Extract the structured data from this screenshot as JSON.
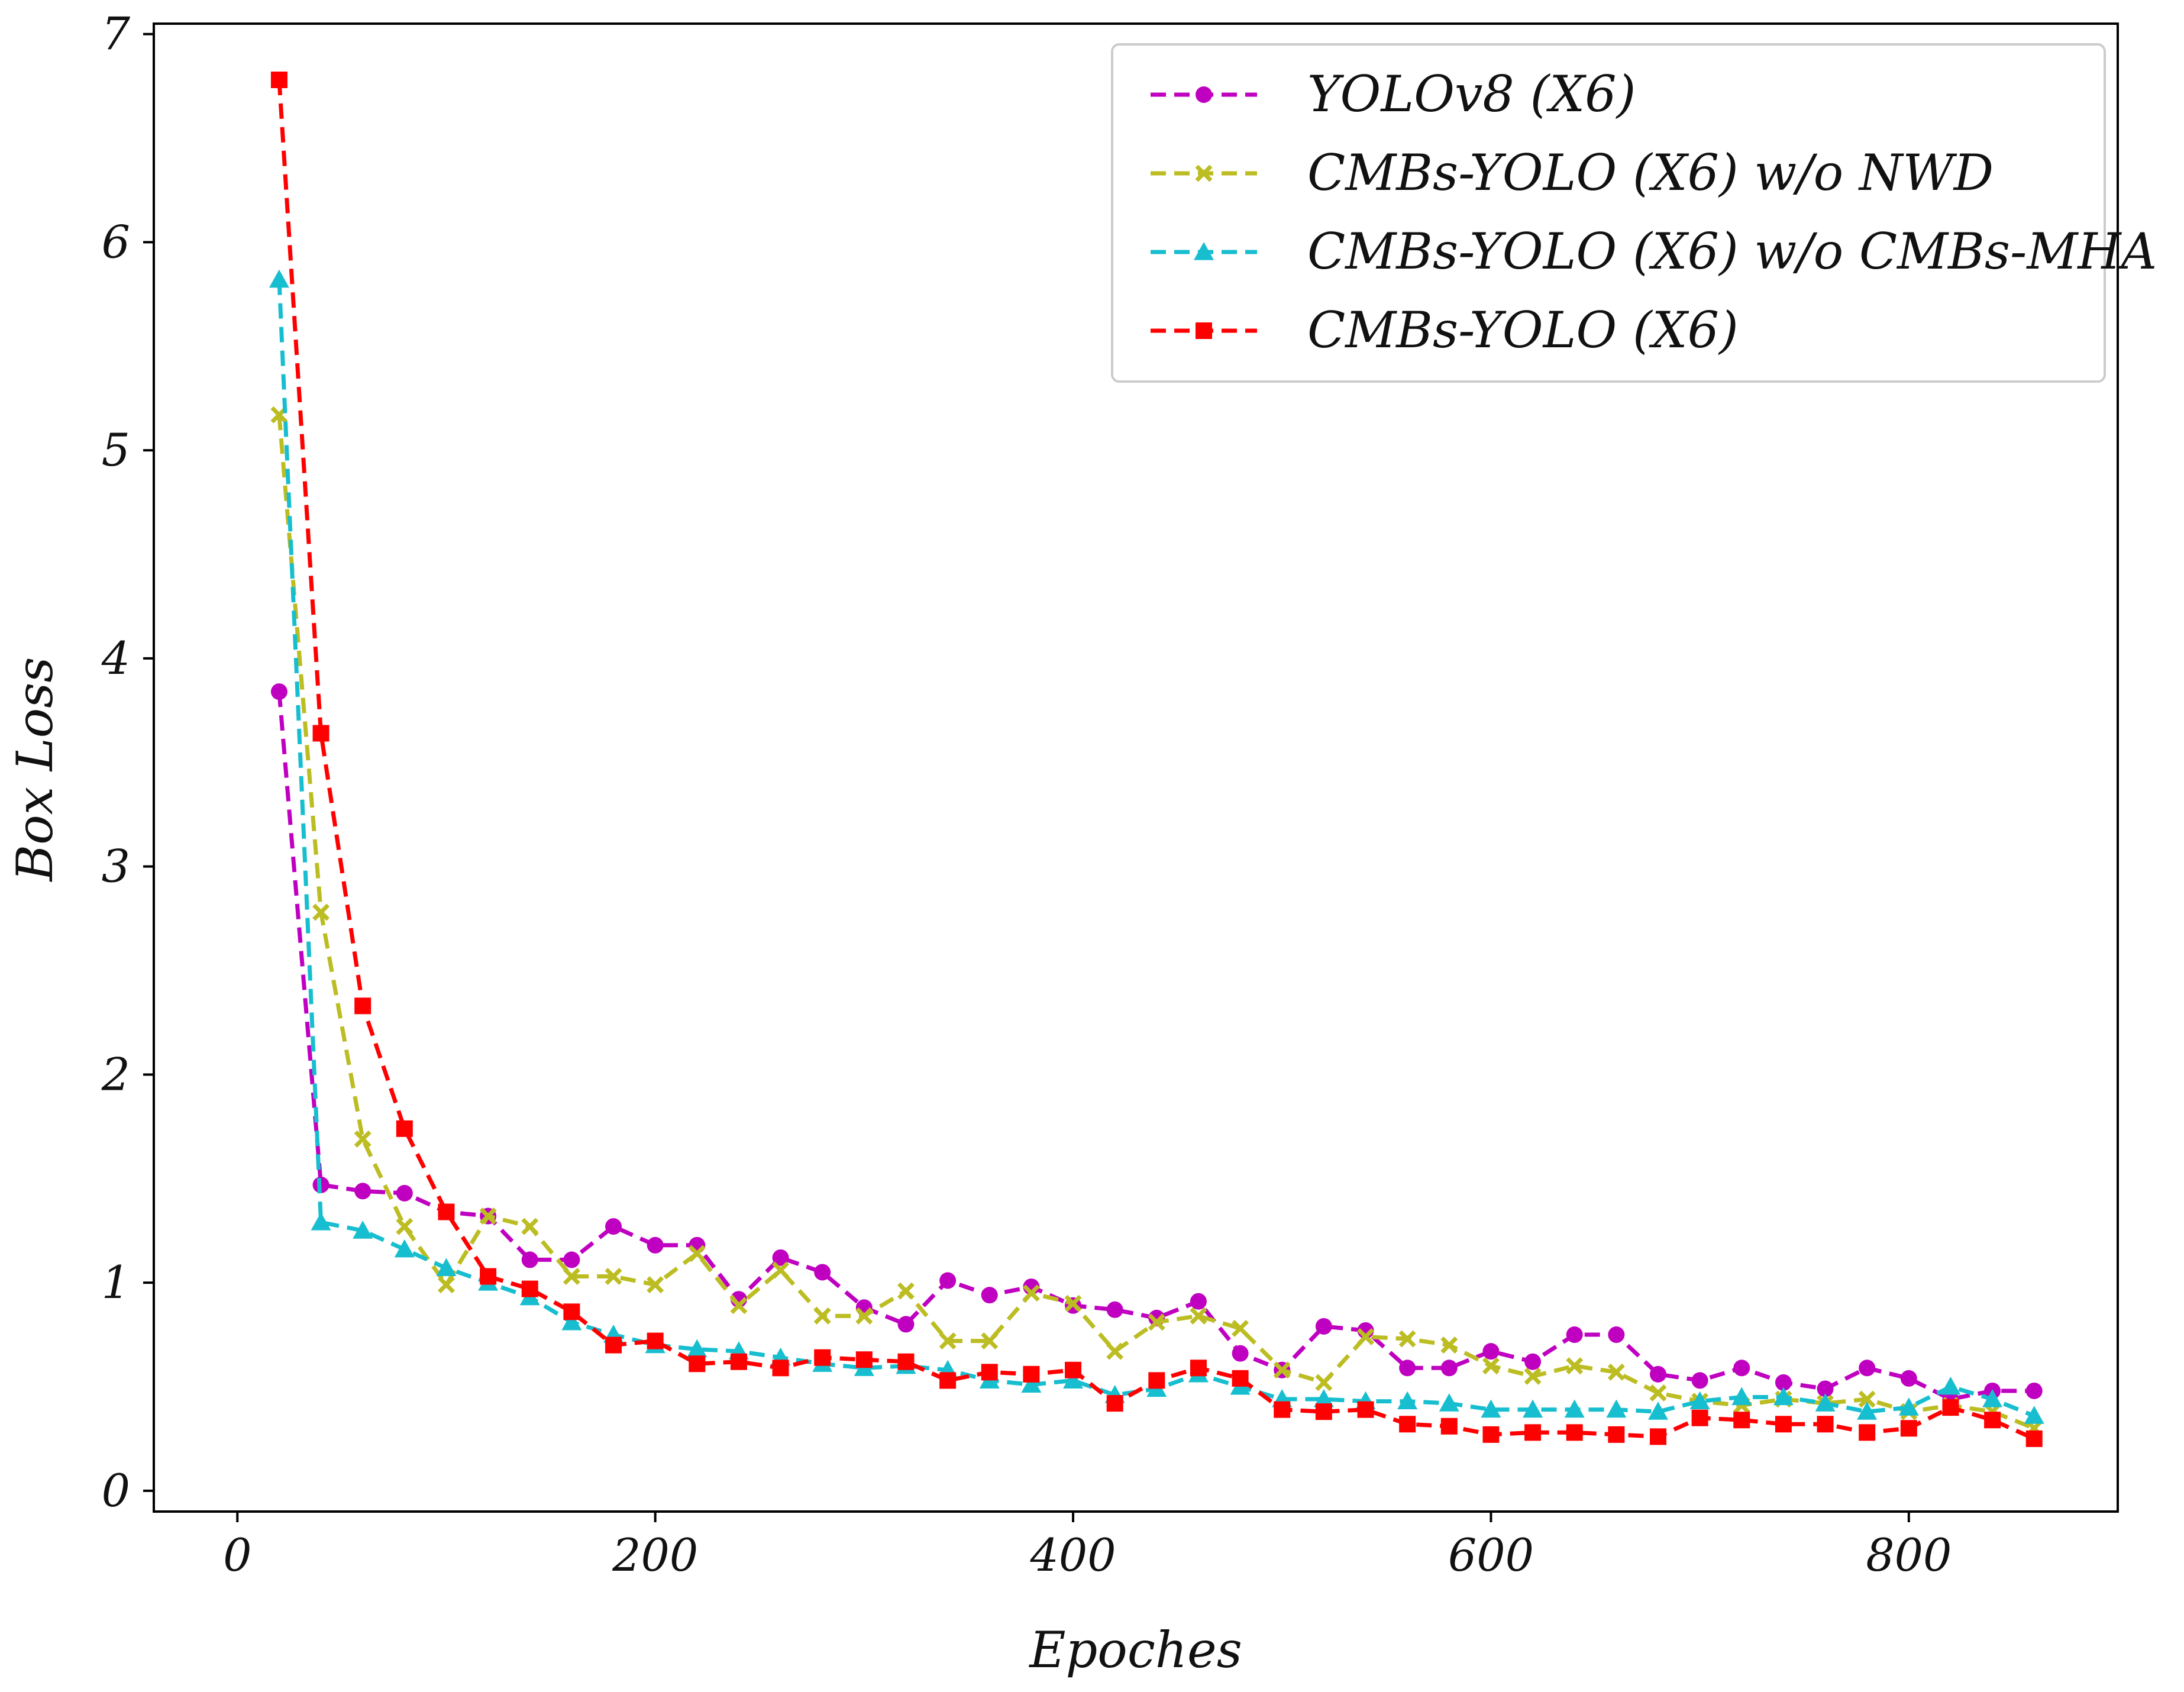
{
  "chart_data": {
    "type": "line",
    "title": "",
    "xlabel": "Epoches",
    "ylabel": "Box Loss",
    "xlim": [
      -40,
      900
    ],
    "ylim": [
      -0.1,
      7.05
    ],
    "xticks": [
      0,
      200,
      400,
      600,
      800
    ],
    "xtick_labels": [
      "0",
      "200",
      "400",
      "600",
      "800"
    ],
    "yticks": [
      0,
      1,
      2,
      3,
      4,
      5,
      6,
      7
    ],
    "ytick_labels": [
      "0",
      "1",
      "2",
      "3",
      "4",
      "5",
      "6",
      "7"
    ],
    "grid": false,
    "legend_position": "top-right",
    "x": [
      20,
      40,
      60,
      80,
      100,
      120,
      140,
      160,
      180,
      200,
      220,
      240,
      260,
      280,
      300,
      320,
      340,
      360,
      380,
      400,
      420,
      440,
      460,
      480,
      500,
      520,
      540,
      560,
      580,
      600,
      620,
      640,
      660,
      680,
      700,
      720,
      740,
      760,
      780,
      800,
      820,
      840,
      860
    ],
    "series": [
      {
        "name": "YOLOv8 (X6)",
        "color": "#c000c0",
        "marker": "circle",
        "values": [
          3.84,
          1.47,
          1.44,
          1.43,
          1.34,
          1.32,
          1.11,
          1.11,
          1.27,
          1.18,
          1.18,
          0.92,
          1.12,
          1.05,
          0.88,
          0.8,
          1.01,
          0.94,
          0.98,
          0.89,
          0.87,
          0.83,
          0.91,
          0.66,
          0.58,
          0.79,
          0.77,
          0.59,
          0.59,
          0.67,
          0.62,
          0.75,
          0.75,
          0.56,
          0.53,
          0.59,
          0.52,
          0.49,
          0.59,
          0.54,
          0.44,
          0.48,
          0.48
        ]
      },
      {
        "name": "CMBs-YOLO (X6) w/o NWD",
        "color": "#bcbd22",
        "marker": "x",
        "values": [
          5.17,
          2.78,
          1.69,
          1.27,
          0.99,
          1.32,
          1.27,
          1.03,
          1.03,
          0.99,
          1.14,
          0.89,
          1.06,
          0.84,
          0.84,
          0.96,
          0.72,
          0.72,
          0.95,
          0.9,
          0.67,
          0.81,
          0.84,
          0.78,
          0.58,
          0.52,
          0.74,
          0.73,
          0.7,
          0.6,
          0.55,
          0.6,
          0.57,
          0.47,
          0.43,
          0.41,
          0.44,
          0.42,
          0.44,
          0.38,
          0.41,
          0.38,
          0.3
        ]
      },
      {
        "name": "CMBs-YOLO (X6) w/o CMBs-MHA",
        "color": "#17becf",
        "marker": "triangle",
        "values": [
          5.82,
          1.29,
          1.25,
          1.16,
          1.07,
          1.0,
          0.93,
          0.81,
          0.75,
          0.7,
          0.68,
          0.67,
          0.64,
          0.61,
          0.59,
          0.6,
          0.58,
          0.53,
          0.51,
          0.53,
          0.46,
          0.49,
          0.56,
          0.5,
          0.44,
          0.44,
          0.43,
          0.43,
          0.42,
          0.39,
          0.39,
          0.39,
          0.39,
          0.38,
          0.43,
          0.45,
          0.45,
          0.42,
          0.38,
          0.4,
          0.5,
          0.44,
          0.36
        ]
      },
      {
        "name": "CMBs-YOLO (X6)",
        "color": "#ff0000",
        "marker": "square",
        "values": [
          6.78,
          3.64,
          2.33,
          1.74,
          1.34,
          1.03,
          0.97,
          0.86,
          0.7,
          0.72,
          0.61,
          0.62,
          0.59,
          0.64,
          0.63,
          0.62,
          0.53,
          0.57,
          0.56,
          0.58,
          0.42,
          0.53,
          0.59,
          0.54,
          0.39,
          0.38,
          0.39,
          0.32,
          0.31,
          0.27,
          0.28,
          0.28,
          0.27,
          0.26,
          0.35,
          0.34,
          0.32,
          0.32,
          0.28,
          0.3,
          0.4,
          0.34,
          0.25
        ]
      }
    ]
  }
}
